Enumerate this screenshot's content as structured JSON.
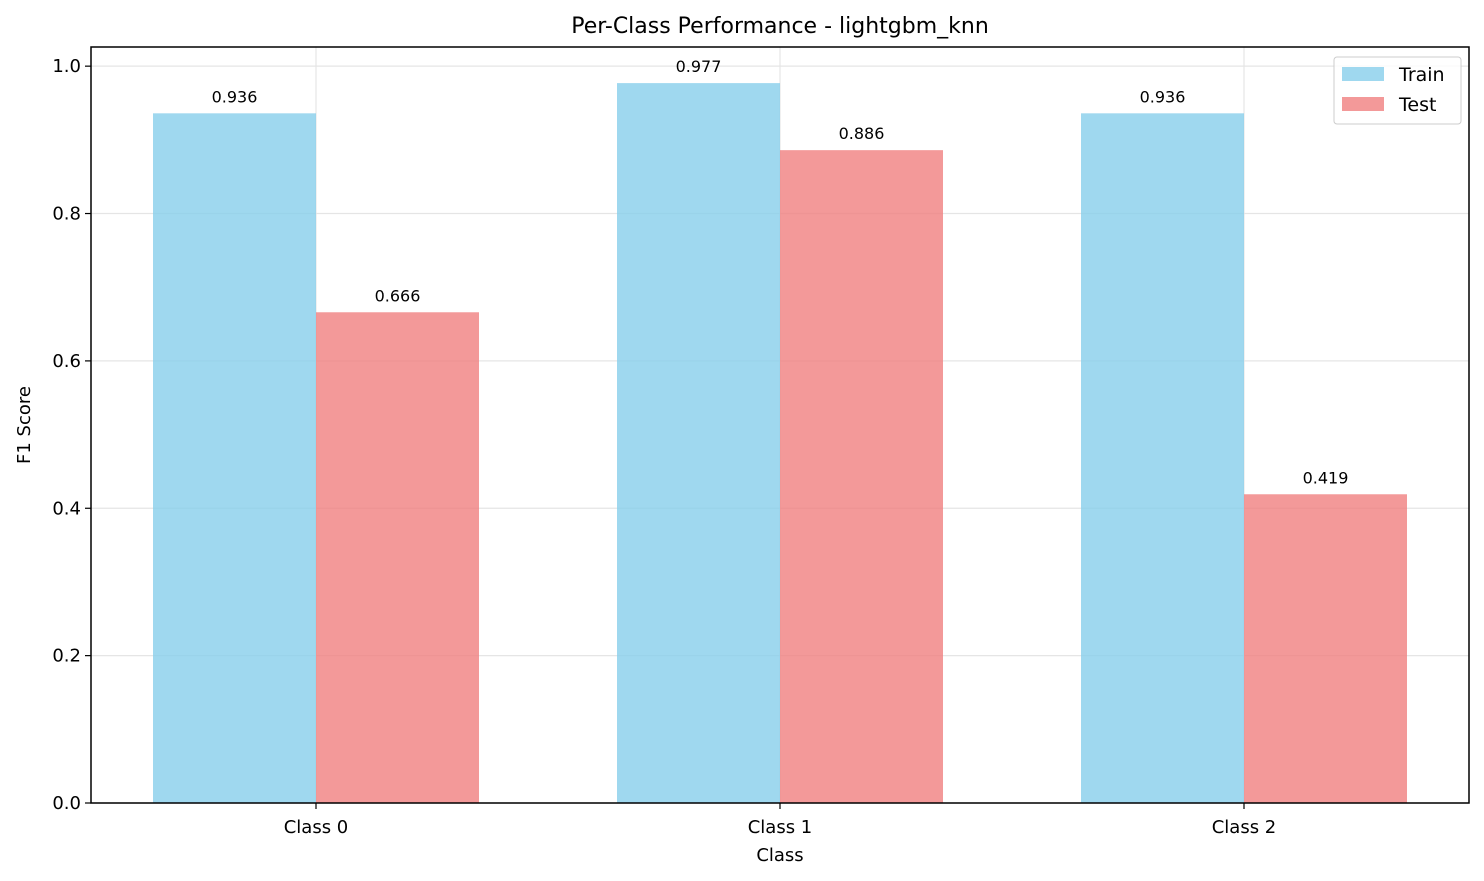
{
  "chart_data": {
    "type": "bar",
    "title": "Per-Class Performance - lightgbm_knn",
    "xlabel": "Class",
    "ylabel": "F1 Score",
    "categories": [
      "Class 0",
      "Class 1",
      "Class 2"
    ],
    "series": [
      {
        "name": "Train",
        "values": [
          0.936,
          0.977,
          0.936
        ],
        "labels": [
          "0.936",
          "0.977",
          "0.936"
        ],
        "color": "#87CEEB"
      },
      {
        "name": "Test",
        "values": [
          0.666,
          0.886,
          0.419
        ],
        "labels": [
          "0.666",
          "0.886",
          "0.419"
        ],
        "color": "#F08080"
      }
    ],
    "ylim": [
      0,
      1.026
    ],
    "yticks": [
      0.0,
      0.2,
      0.4,
      0.6,
      0.8,
      1.0
    ],
    "ytick_labels": [
      "0.0",
      "0.2",
      "0.4",
      "0.6",
      "0.8",
      "1.0"
    ],
    "grid": true,
    "legend_position": "top-right"
  }
}
